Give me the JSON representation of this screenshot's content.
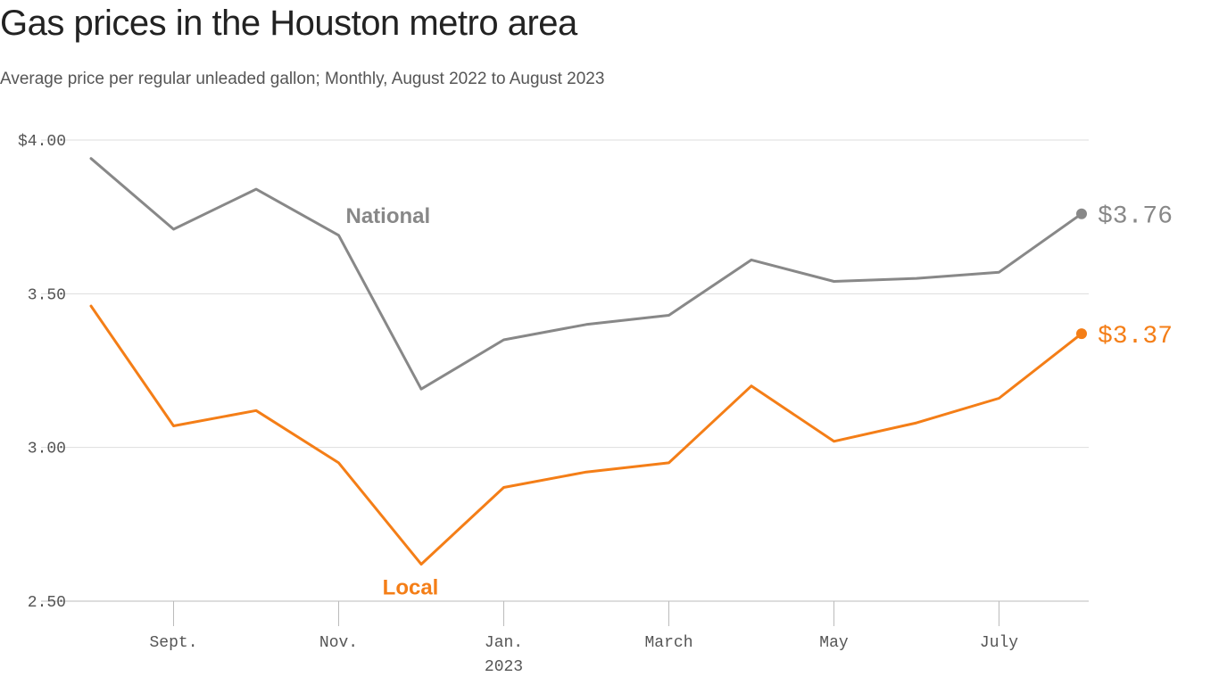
{
  "chart_data": {
    "type": "line",
    "title": "Gas prices in the Houston metro area",
    "subtitle": "Average price per regular unleaded gallon; Monthly, August 2022 to August 2023",
    "x": [
      "2022-08",
      "2022-09",
      "2022-10",
      "2022-11",
      "2022-12",
      "2023-01",
      "2023-02",
      "2023-03",
      "2023-04",
      "2023-05",
      "2023-06",
      "2023-07",
      "2023-08"
    ],
    "x_tick_labels": [
      {
        "at": "2022-09",
        "label": "Sept."
      },
      {
        "at": "2022-11",
        "label": "Nov."
      },
      {
        "at": "2023-01",
        "label": "Jan."
      },
      {
        "at": "2023-03",
        "label": "March"
      },
      {
        "at": "2023-05",
        "label": "May"
      },
      {
        "at": "2023-07",
        "label": "July"
      }
    ],
    "x_year_label": {
      "at": "2023-01",
      "label": "2023"
    },
    "y_ticks": [
      {
        "value": 4.0,
        "label": "$4.00"
      },
      {
        "value": 3.5,
        "label": "3.50"
      },
      {
        "value": 3.0,
        "label": "3.00"
      },
      {
        "value": 2.5,
        "label": "2.50"
      }
    ],
    "ylim": [
      2.5,
      4.0
    ],
    "grid": true,
    "series": [
      {
        "name": "National",
        "color": "#888888",
        "values": [
          3.94,
          3.71,
          3.84,
          3.69,
          3.19,
          3.35,
          3.4,
          3.43,
          3.61,
          3.54,
          3.55,
          3.57,
          3.76
        ],
        "end_label": "$3.76"
      },
      {
        "name": "Local",
        "color": "#f47e17",
        "values": [
          3.46,
          3.07,
          3.12,
          2.95,
          2.62,
          2.87,
          2.92,
          2.95,
          3.2,
          3.02,
          3.08,
          3.16,
          3.37
        ],
        "end_label": "$3.37"
      }
    ]
  }
}
